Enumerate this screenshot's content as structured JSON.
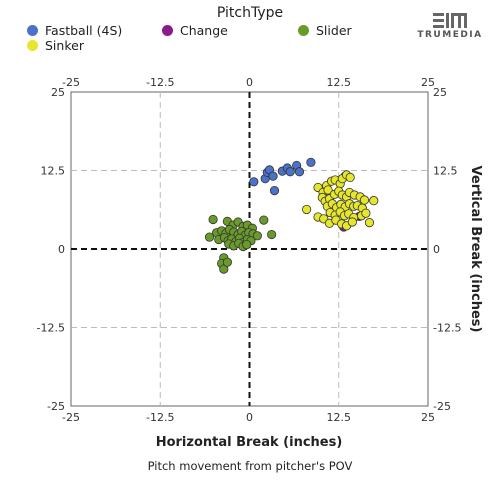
{
  "legend": {
    "title": "PitchType",
    "items": [
      {
        "label": "Fastball (4S)",
        "color": "#4b72c9"
      },
      {
        "label": "Change",
        "color": "#8b1a8b"
      },
      {
        "label": "Slider",
        "color": "#6a9b2a"
      },
      {
        "label": "Sinker",
        "color": "#e6e62a"
      }
    ]
  },
  "logo": {
    "text": "TRUMEDIA"
  },
  "caption": "Pitch movement from pitcher's POV",
  "chart_data": {
    "type": "scatter",
    "xlabel": "Horizontal Break (inches)",
    "ylabel": "Vertical Break (inches)",
    "xlim": [
      -25,
      25
    ],
    "ylim": [
      -25,
      25
    ],
    "x_ticks": [
      -25,
      -12.5,
      0,
      12.5,
      25
    ],
    "y_ticks": [
      -25,
      -12.5,
      0,
      12.5,
      25
    ],
    "x_tick_labels": [
      "-25",
      "-12.5",
      "0",
      "12.5",
      "25"
    ],
    "y_tick_labels": [
      "-25",
      "-12.5",
      "0",
      "12.5",
      "25"
    ],
    "grid": true,
    "series": [
      {
        "name": "Fastball (4S)",
        "color": "#4b72c9",
        "points": [
          [
            0.6,
            10.7
          ],
          [
            2.2,
            11.2
          ],
          [
            2.5,
            12.2
          ],
          [
            2.8,
            12.6
          ],
          [
            3.3,
            11.6
          ],
          [
            3.5,
            9.3
          ],
          [
            4.6,
            12.4
          ],
          [
            5.3,
            12.9
          ],
          [
            5.7,
            12.3
          ],
          [
            6.6,
            13.3
          ],
          [
            7.0,
            12.3
          ],
          [
            8.6,
            13.8
          ]
        ]
      },
      {
        "name": "Change",
        "color": "#8b1a8b",
        "points": [
          [
            13.4,
            11.6
          ],
          [
            15.4,
            5.2
          ],
          [
            13.2,
            3.5
          ]
        ]
      },
      {
        "name": "Sinker",
        "color": "#e6e62a",
        "points": [
          [
            8.0,
            6.3
          ],
          [
            9.6,
            9.8
          ],
          [
            10.3,
            9.0
          ],
          [
            10.8,
            10.1
          ],
          [
            11.0,
            9.4
          ],
          [
            11.5,
            10.8
          ],
          [
            12.0,
            11.0
          ],
          [
            12.7,
            10.4
          ],
          [
            13.0,
            11.2
          ],
          [
            13.6,
            11.8
          ],
          [
            14.1,
            11.4
          ],
          [
            10.2,
            8.2
          ],
          [
            10.6,
            7.6
          ],
          [
            11.2,
            8.0
          ],
          [
            11.9,
            8.7
          ],
          [
            12.5,
            9.2
          ],
          [
            13.0,
            8.6
          ],
          [
            13.6,
            8.3
          ],
          [
            14.0,
            9.0
          ],
          [
            14.7,
            8.6
          ],
          [
            15.5,
            8.3
          ],
          [
            16.1,
            7.8
          ],
          [
            10.9,
            6.8
          ],
          [
            11.6,
            7.2
          ],
          [
            12.2,
            6.6
          ],
          [
            12.8,
            7.1
          ],
          [
            13.4,
            6.7
          ],
          [
            14.0,
            7.2
          ],
          [
            14.6,
            6.8
          ],
          [
            15.1,
            6.9
          ],
          [
            15.8,
            6.5
          ],
          [
            17.4,
            7.7
          ],
          [
            11.3,
            5.8
          ],
          [
            12.0,
            5.4
          ],
          [
            12.7,
            5.9
          ],
          [
            13.3,
            5.3
          ],
          [
            13.9,
            5.6
          ],
          [
            14.6,
            5.0
          ],
          [
            15.7,
            5.3
          ],
          [
            16.3,
            5.7
          ],
          [
            9.6,
            5.1
          ],
          [
            10.4,
            4.8
          ],
          [
            11.2,
            4.1
          ],
          [
            12.1,
            4.6
          ],
          [
            12.9,
            4.0
          ],
          [
            13.6,
            3.7
          ],
          [
            14.4,
            4.3
          ],
          [
            16.8,
            4.2
          ]
        ]
      },
      {
        "name": "Slider",
        "color": "#6a9b2a",
        "points": [
          [
            -5.1,
            4.7
          ],
          [
            -3.1,
            4.4
          ],
          [
            -2.3,
            3.8
          ],
          [
            -1.6,
            4.3
          ],
          [
            -0.9,
            3.6
          ],
          [
            -0.3,
            3.8
          ],
          [
            0.4,
            3.3
          ],
          [
            2.0,
            4.6
          ],
          [
            -4.6,
            2.6
          ],
          [
            -3.9,
            2.9
          ],
          [
            -3.3,
            2.5
          ],
          [
            -2.8,
            3.1
          ],
          [
            -2.2,
            2.7
          ],
          [
            -1.6,
            2.3
          ],
          [
            -1.1,
            2.8
          ],
          [
            -0.6,
            2.2
          ],
          [
            -0.1,
            2.6
          ],
          [
            0.5,
            2.4
          ],
          [
            1.1,
            2.1
          ],
          [
            3.1,
            2.3
          ],
          [
            -5.6,
            1.9
          ],
          [
            -4.3,
            1.5
          ],
          [
            -3.5,
            1.8
          ],
          [
            -3.0,
            1.3
          ],
          [
            -2.5,
            1.6
          ],
          [
            -1.9,
            1.2
          ],
          [
            -1.4,
            1.7
          ],
          [
            -0.8,
            1.1
          ],
          [
            -0.3,
            1.5
          ],
          [
            0.2,
            1.3
          ],
          [
            -2.9,
            0.8
          ],
          [
            -2.2,
            0.5
          ],
          [
            -1.5,
            0.9
          ],
          [
            -0.9,
            0.4
          ],
          [
            -0.4,
            0.7
          ],
          [
            -3.6,
            -1.4
          ],
          [
            -3.9,
            -2.3
          ],
          [
            -3.6,
            -3.2
          ],
          [
            -3.1,
            -2.1
          ]
        ]
      }
    ]
  }
}
